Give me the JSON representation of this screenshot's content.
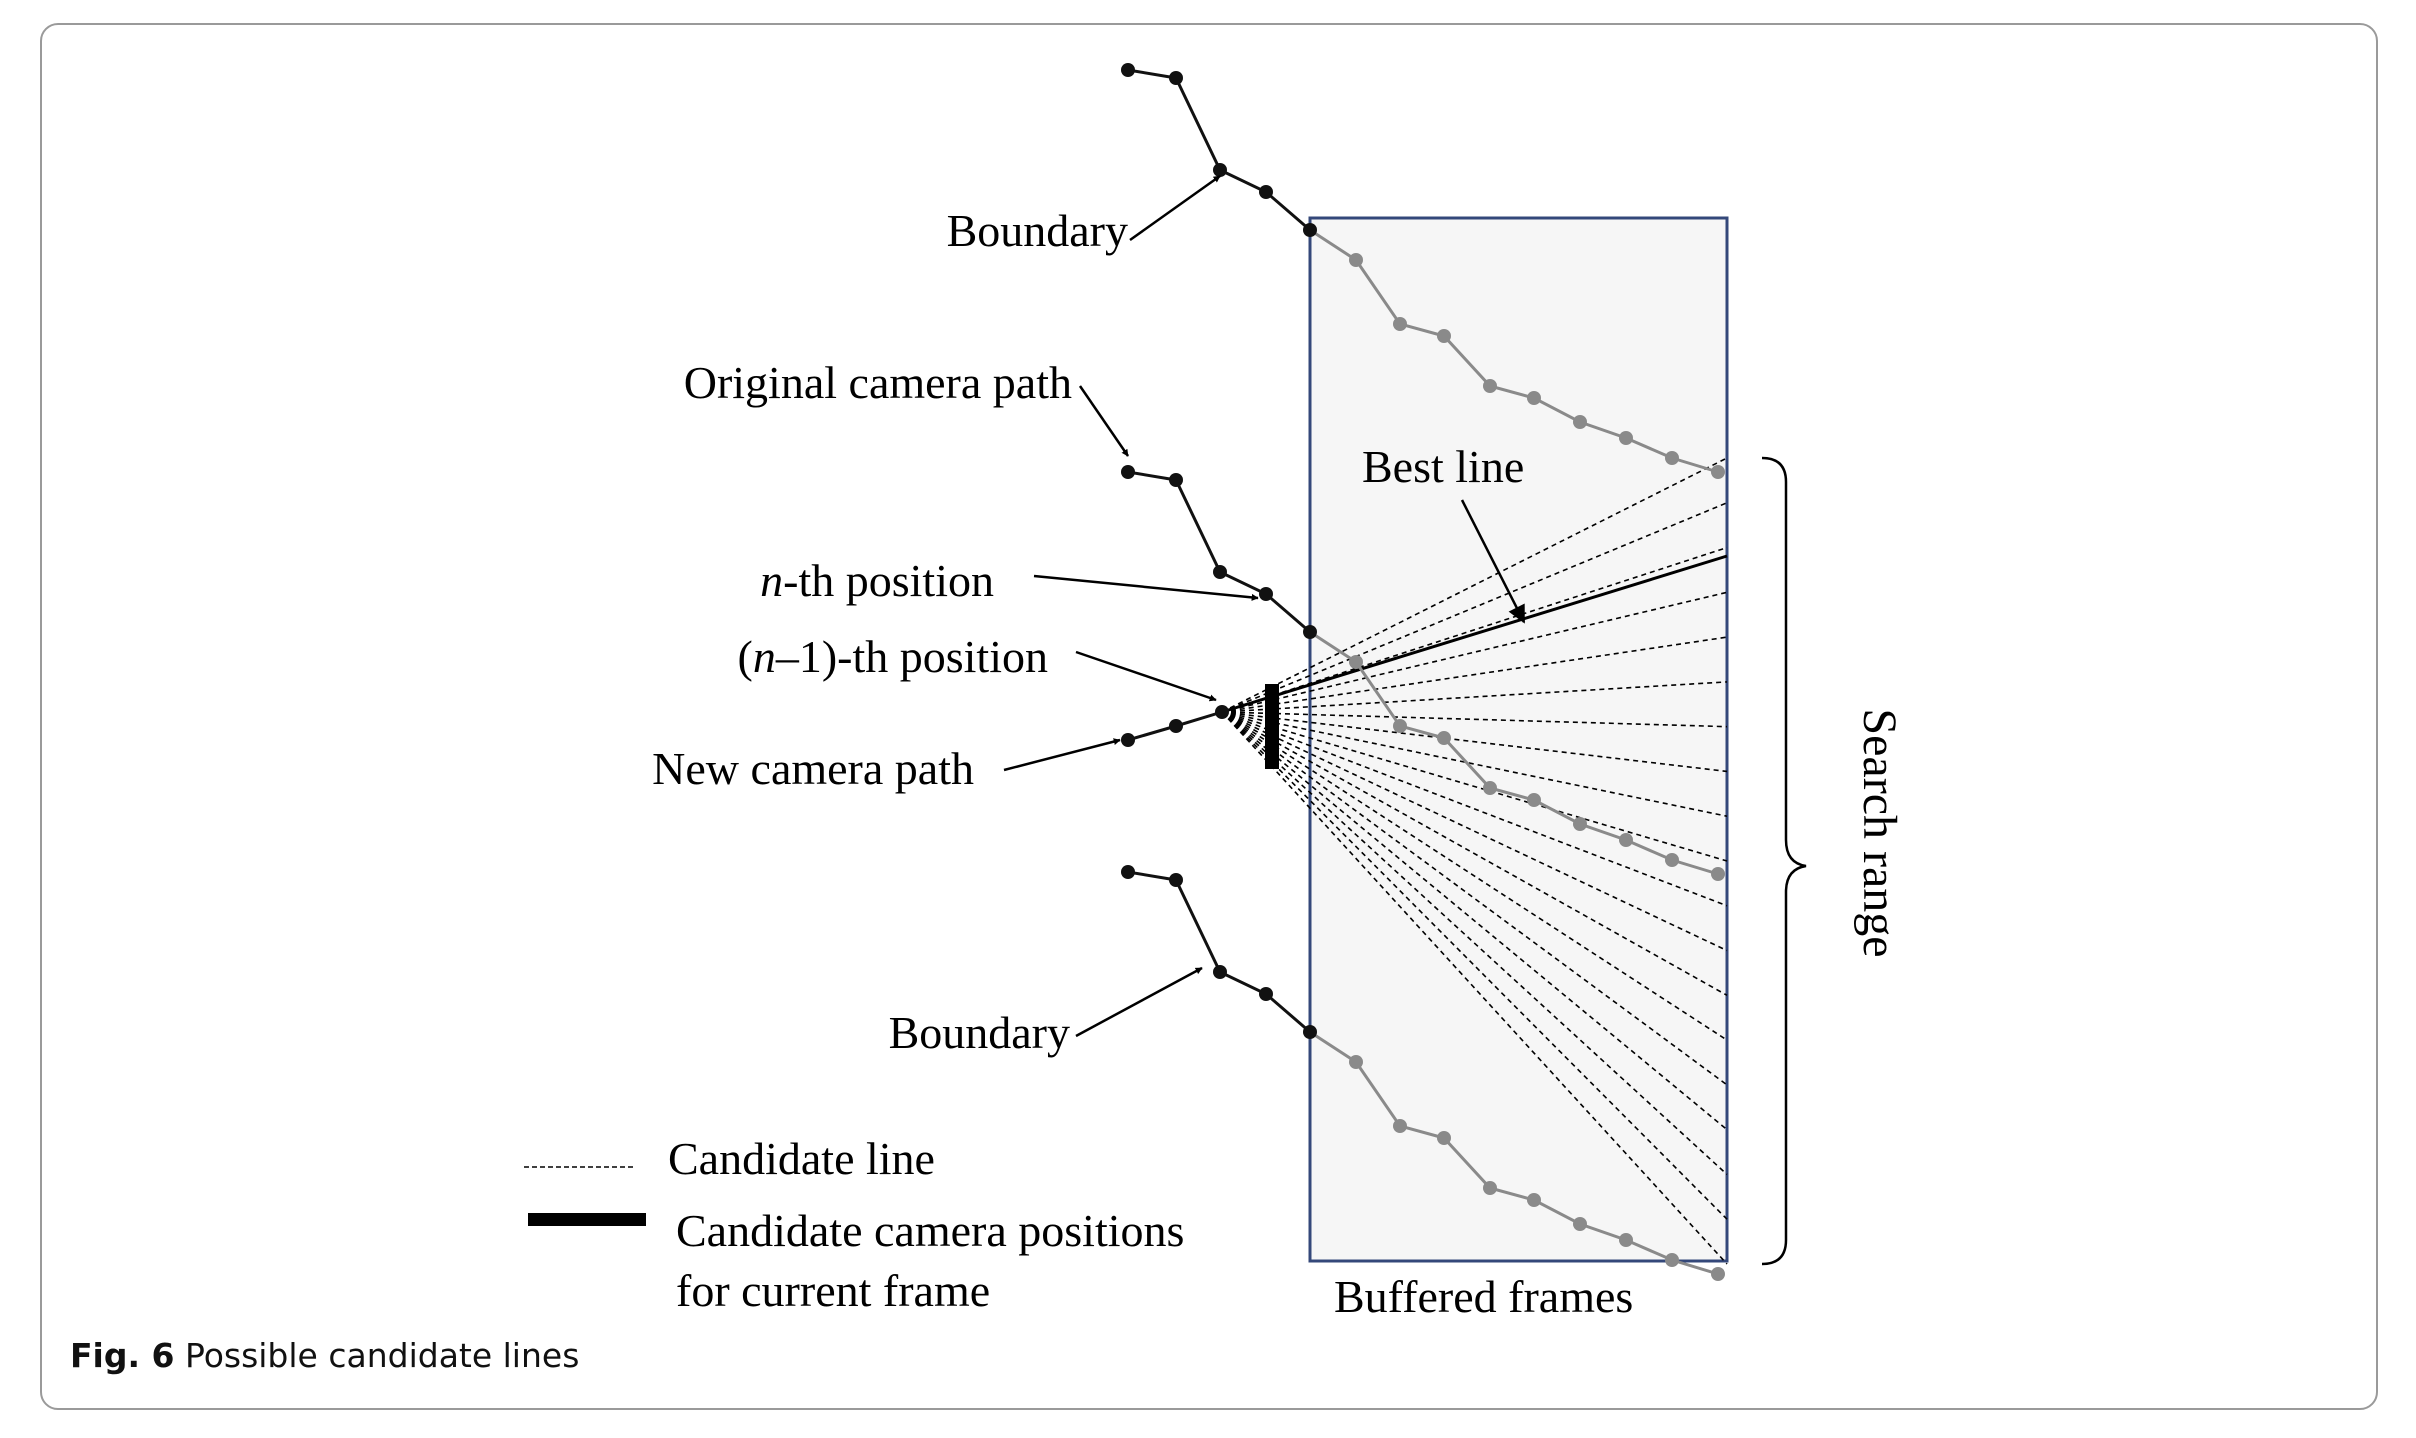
{
  "labels": {
    "boundary_top": "Boundary",
    "original_path": "Original camera path",
    "nth_prefix": "n",
    "nth_suffix": "-th position",
    "n1_open": "(",
    "n1_var": "n",
    "n1_suffix": "–1)-th position",
    "new_path": "New camera path",
    "boundary_bottom": "Boundary",
    "best_line": "Best line",
    "search_range": "Search range",
    "buffered_frames": "Buffered frames"
  },
  "legend": {
    "candidate_line": "Candidate line",
    "candidate_positions_line1": "Candidate camera  positions",
    "candidate_positions_line2": "for current  frame"
  },
  "caption": {
    "label": "Fig. 6",
    "text": "Possible candidate lines"
  },
  "colors": {
    "buffer_border": "#34487a",
    "buffer_fill": "#f6f6f6",
    "past_path": "#111111",
    "buffered_path": "#8a8a8a"
  }
}
